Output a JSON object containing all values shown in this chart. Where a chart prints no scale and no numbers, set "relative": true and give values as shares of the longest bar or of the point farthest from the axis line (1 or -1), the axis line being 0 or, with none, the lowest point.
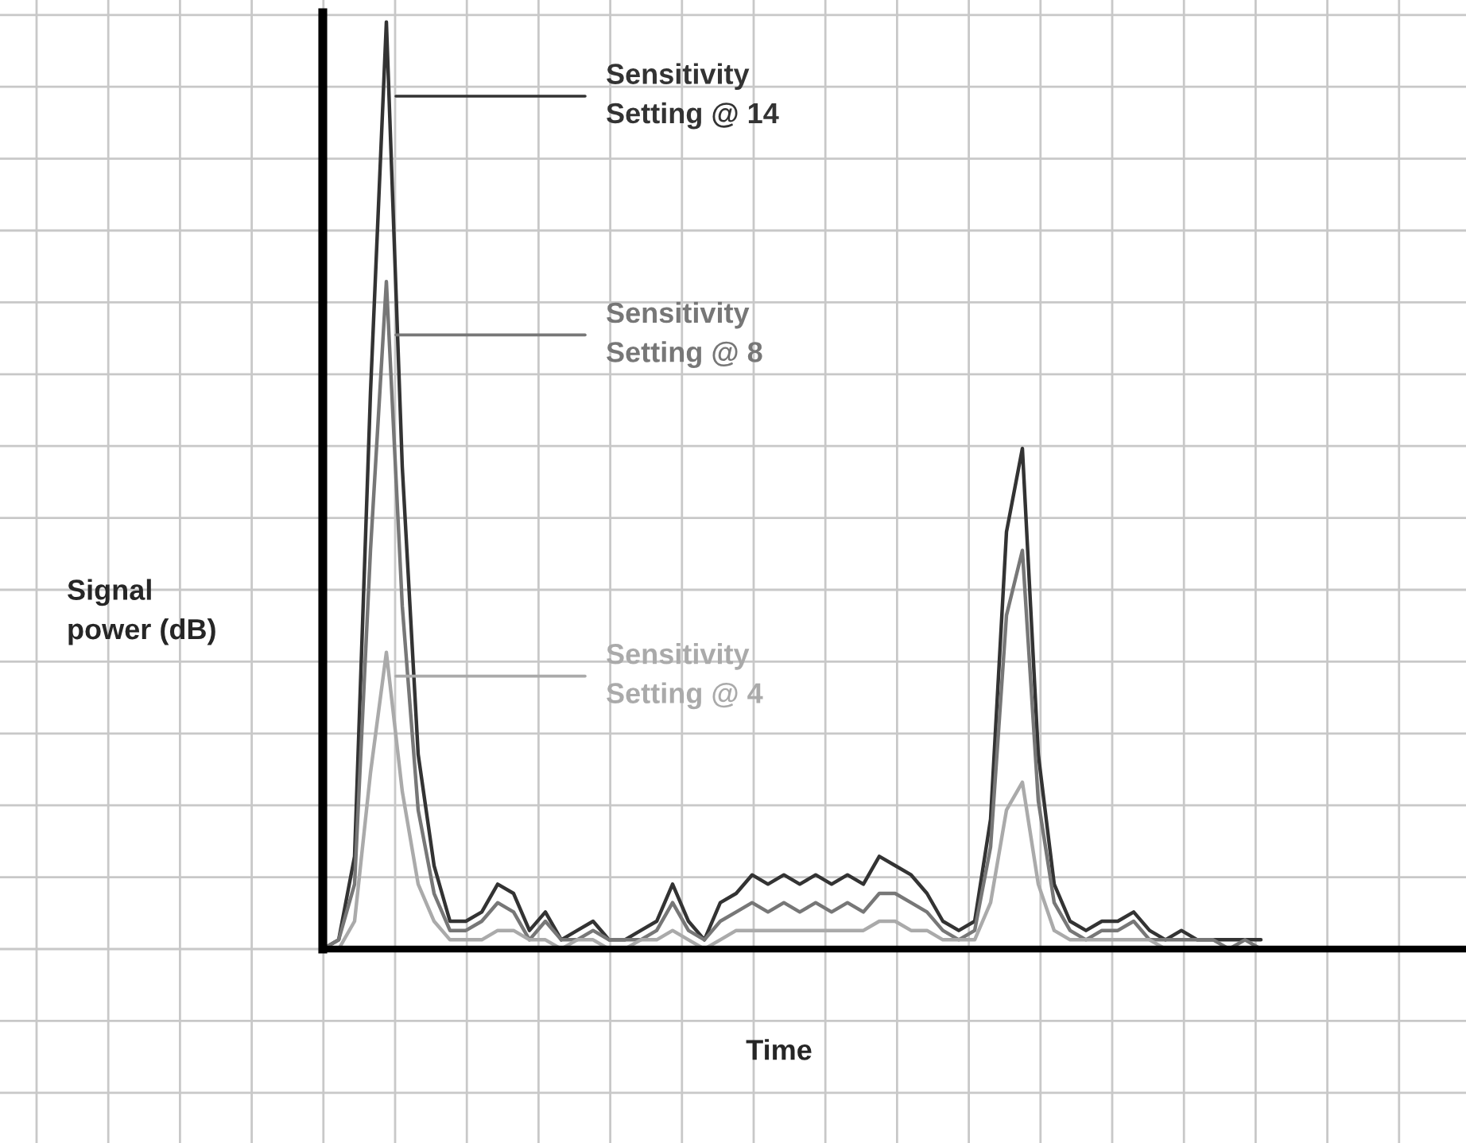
{
  "chart_data": {
    "type": "line",
    "relative": true,
    "xlabel": "Time",
    "ylabel": "Signal\npower (dB)",
    "grid": true,
    "marker": "none",
    "line_style": "solid",
    "categories": [
      null,
      null,
      null,
      null,
      null,
      null,
      null,
      null,
      null,
      null,
      null,
      null,
      null,
      null,
      null,
      null,
      null,
      null,
      null,
      null,
      null,
      null,
      null,
      null,
      null,
      null,
      null,
      null,
      null,
      null,
      null,
      null,
      null,
      null,
      null,
      null,
      null,
      null,
      null,
      null,
      null,
      null,
      null,
      null,
      null,
      null,
      null,
      null,
      null,
      null,
      null,
      null,
      null,
      null,
      null,
      null,
      null,
      null,
      null,
      null,
      null,
      null,
      null,
      null,
      null,
      null,
      null,
      null,
      null,
      null,
      null,
      null
    ],
    "series": [
      {
        "name": "Sensitivity\nSetting @ 14",
        "color": "#333333",
        "values": [
          0,
          0.01,
          0.1,
          0.6,
          1,
          0.52,
          0.21,
          0.09,
          0.03,
          0.03,
          0.04,
          0.07,
          0.06,
          0.02,
          0.04,
          0.01,
          0.02,
          0.03,
          0.01,
          0.01,
          0.02,
          0.03,
          0.07,
          0.03,
          0.01,
          0.05,
          0.06,
          0.08,
          0.07,
          0.08,
          0.07,
          0.08,
          0.07,
          0.08,
          0.07,
          0.1,
          0.09,
          0.08,
          0.06,
          0.03,
          0.02,
          0.03,
          0.14,
          0.45,
          0.54,
          0.21,
          0.07,
          0.03,
          0.02,
          0.03,
          0.03,
          0.04,
          0.02,
          0.01,
          0.02,
          0.01,
          0.01,
          0.01,
          0.01,
          0.01,
          null,
          null,
          null,
          null,
          null,
          null,
          null,
          null,
          null,
          null,
          null,
          null
        ]
      },
      {
        "name": "Sensitivity\nSetting @ 8",
        "color": "#777777",
        "values": [
          0,
          0.01,
          0.07,
          0.43,
          0.72,
          0.37,
          0.15,
          0.06,
          0.02,
          0.02,
          0.03,
          0.05,
          0.04,
          0.01,
          0.03,
          0.01,
          0.01,
          0.02,
          0.01,
          0.01,
          0.01,
          0.02,
          0.05,
          0.02,
          0.01,
          0.03,
          0.04,
          0.05,
          0.04,
          0.05,
          0.04,
          0.05,
          0.04,
          0.05,
          0.04,
          0.06,
          0.06,
          0.05,
          0.04,
          0.02,
          0.01,
          0.02,
          0.11,
          0.36,
          0.43,
          0.16,
          0.05,
          0.02,
          0.01,
          0.02,
          0.02,
          0.03,
          0.01,
          0.01,
          0.01,
          0.01,
          0.01,
          0,
          0.01,
          0,
          null,
          null,
          null,
          null,
          null,
          null,
          null,
          null,
          null,
          null,
          null,
          null
        ]
      },
      {
        "name": "Sensitivity\nSetting @ 4",
        "color": "#aaaaaa",
        "values": [
          0,
          0,
          0.03,
          0.19,
          0.32,
          0.17,
          0.07,
          0.03,
          0.01,
          0.01,
          0.01,
          0.02,
          0.02,
          0.01,
          0.01,
          0,
          0.01,
          0.01,
          0,
          0,
          0.01,
          0.01,
          0.02,
          0.01,
          0,
          0.01,
          0.02,
          0.02,
          0.02,
          0.02,
          0.02,
          0.02,
          0.02,
          0.02,
          0.02,
          0.03,
          0.03,
          0.02,
          0.02,
          0.01,
          0.01,
          0.01,
          0.05,
          0.15,
          0.18,
          0.07,
          0.02,
          0.01,
          0.01,
          0.01,
          0.01,
          0.01,
          0.01,
          0,
          0,
          0,
          0,
          0,
          0,
          0,
          null,
          null,
          null,
          null,
          null,
          null,
          null,
          null,
          null,
          null,
          null,
          null
        ]
      }
    ]
  }
}
